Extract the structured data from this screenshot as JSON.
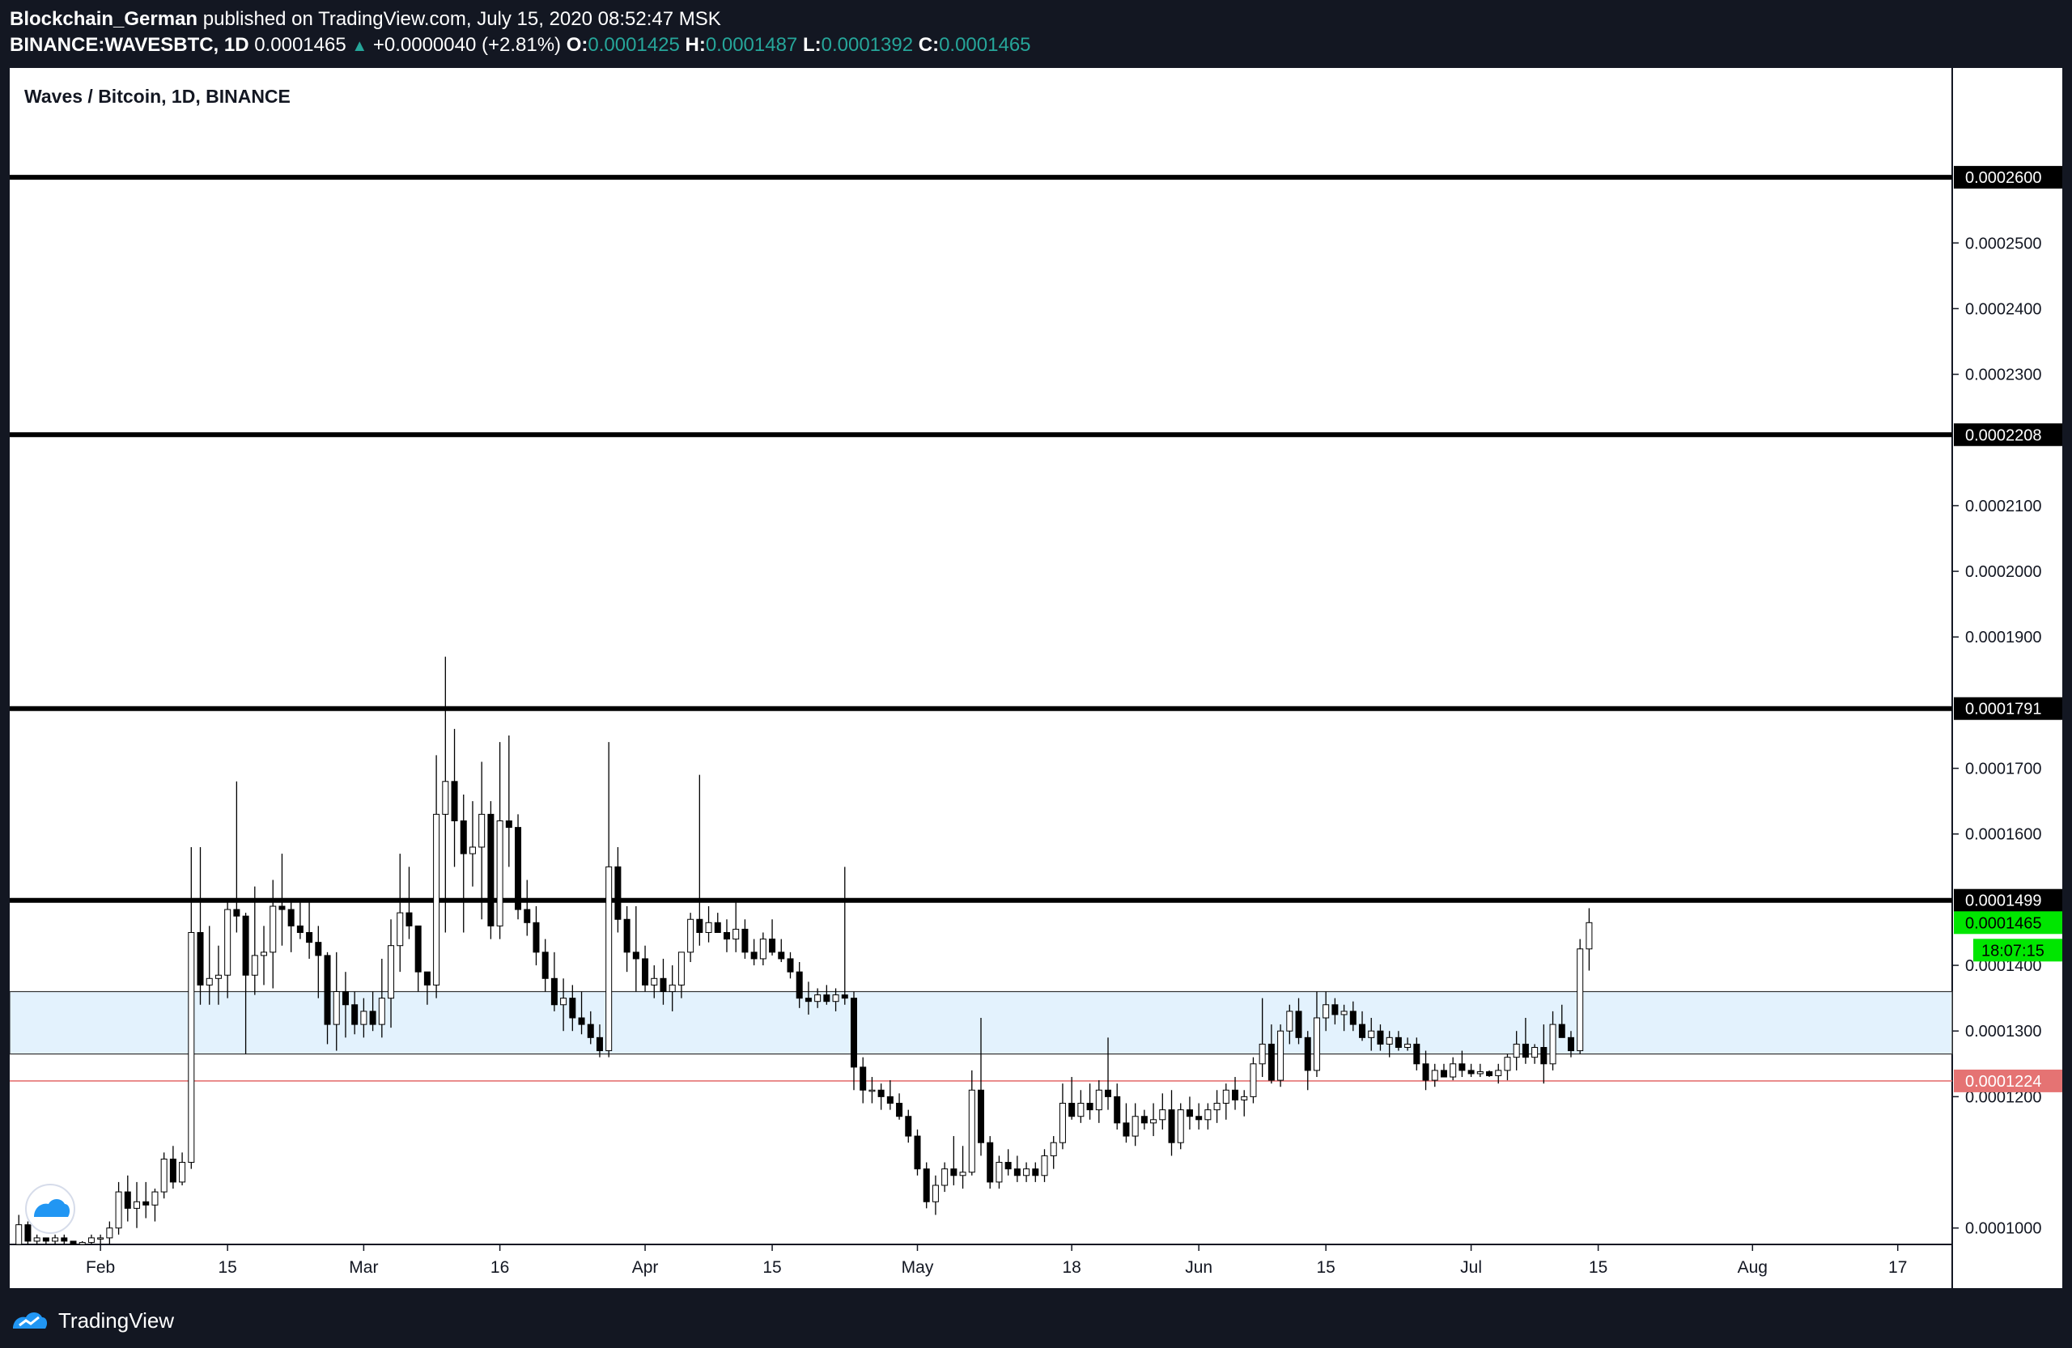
{
  "header": {
    "author": "Blockchain_German",
    "published": "published on TradingView.com, July 15, 2020 08:52:47 MSK",
    "symbol": "BINANCE:WAVESBTC, 1D",
    "last": "0.0001465",
    "change": "+0.0000040 (+2.81%)",
    "o_label": "O:",
    "o_value": "0.0001425",
    "h_label": "H:",
    "h_value": "0.0001487",
    "l_label": "L:",
    "l_value": "0.0001392",
    "c_label": "C:",
    "c_value": "0.0001465"
  },
  "footer": {
    "brand": "TradingView"
  },
  "colors": {
    "background": "#131722",
    "up_candle": "#ffffff",
    "down_candle": "#000000",
    "zone_fill": "#e3f2fd",
    "support_line": "#e57373",
    "price_badge": "#00e600",
    "header_green": "#26a69a"
  },
  "chart_data": {
    "type": "candlestick",
    "title": "Waves / Bitcoin, 1D, BINANCE",
    "ylim": [
      9.75e-05,
      0.0002695
    ],
    "y_ticks": [
      "0.0001000",
      "0.0001200",
      "0.0001300",
      "0.0001400",
      "0.0001600",
      "0.0001700",
      "0.0001900",
      "0.0002000",
      "0.0002100",
      "0.0002300",
      "0.0002400",
      "0.0002500"
    ],
    "x_ticks": [
      {
        "label": "Feb",
        "date": "2020-02-01"
      },
      {
        "label": "15",
        "date": "2020-02-15"
      },
      {
        "label": "Mar",
        "date": "2020-03-01"
      },
      {
        "label": "16",
        "date": "2020-03-16"
      },
      {
        "label": "Apr",
        "date": "2020-04-01"
      },
      {
        "label": "15",
        "date": "2020-04-15"
      },
      {
        "label": "May",
        "date": "2020-05-01"
      },
      {
        "label": "18",
        "date": "2020-05-18"
      },
      {
        "label": "Jun",
        "date": "2020-06-01"
      },
      {
        "label": "15",
        "date": "2020-06-15"
      },
      {
        "label": "Jul",
        "date": "2020-07-01"
      },
      {
        "label": "15",
        "date": "2020-07-15"
      },
      {
        "label": "Aug",
        "date": "2020-08-01"
      },
      {
        "label": "17",
        "date": "2020-08-17"
      }
    ],
    "first_date": "2020-01-23",
    "x_range": [
      "2020-01-22",
      "2020-08-23"
    ],
    "horizontal_levels": [
      {
        "value": 0.00026,
        "label": "0.0002600"
      },
      {
        "value": 0.0002208,
        "label": "0.0002208"
      },
      {
        "value": 0.0001791,
        "label": "0.0001791"
      },
      {
        "value": 0.0001499,
        "label": "0.0001499"
      }
    ],
    "support_level": {
      "value": 0.0001224,
      "label": "0.0001224"
    },
    "zone": [
      0.0001265,
      0.000136
    ],
    "last_price": {
      "value": 0.0001465,
      "label": "0.0001465"
    },
    "countdown": "18:07:15",
    "ohlc": [
      [
        9.75e-05,
        0.000102,
        9.75e-05,
        0.0001005
      ],
      [
        0.0001005,
        0.000101,
        9.75e-05,
        9.8e-05
      ],
      [
        9.8e-05,
        9.9e-05,
        9.75e-05,
        9.85e-05
      ],
      [
        9.85e-05,
        9.85e-05,
        9.75e-05,
        9.8e-05
      ],
      [
        9.8e-05,
        9.9e-05,
        9.75e-05,
        9.85e-05
      ],
      [
        9.85e-05,
        9.9e-05,
        9.75e-05,
        9.8e-05
      ],
      [
        9.8e-05,
        9.8e-05,
        9.75e-05,
        9.75e-05
      ],
      [
        9.75e-05,
        9.8e-05,
        9.75e-05,
        9.78e-05
      ],
      [
        9.78e-05,
        9.9e-05,
        9.75e-05,
        9.85e-05
      ],
      [
        9.85e-05,
        9.9e-05,
        9.75e-05,
        9.85e-05
      ],
      [
        9.85e-05,
        0.000101,
        9.75e-05,
        0.0001
      ],
      [
        0.0001,
        0.000107,
        9.9e-05,
        0.0001055
      ],
      [
        0.0001055,
        0.000108,
        0.000101,
        0.000103
      ],
      [
        0.000103,
        0.000107,
        0.0001,
        0.000104
      ],
      [
        0.000104,
        0.000107,
        0.0001015,
        0.0001035
      ],
      [
        0.0001035,
        0.000106,
        0.000101,
        0.0001055
      ],
      [
        0.0001055,
        0.0001115,
        0.0001045,
        0.0001105
      ],
      [
        0.0001105,
        0.0001125,
        0.000106,
        0.000107
      ],
      [
        0.000107,
        0.0001115,
        0.0001065,
        0.00011
      ],
      [
        0.00011,
        0.000158,
        0.000109,
        0.000145
      ],
      [
        0.000145,
        0.000158,
        0.000134,
        0.000137
      ],
      [
        0.000137,
        0.000146,
        0.000134,
        0.000138
      ],
      [
        0.000138,
        0.000143,
        0.000134,
        0.0001385
      ],
      [
        0.0001385,
        0.00015,
        0.000135,
        0.0001485
      ],
      [
        0.0001485,
        0.000168,
        0.000145,
        0.0001475
      ],
      [
        0.0001475,
        0.000148,
        0.0001265,
        0.0001385
      ],
      [
        0.0001385,
        0.000152,
        0.0001355,
        0.0001415
      ],
      [
        0.0001415,
        0.000146,
        0.000137,
        0.000142
      ],
      [
        0.000142,
        0.000153,
        0.0001365,
        0.000149
      ],
      [
        0.000149,
        0.000157,
        0.000143,
        0.0001485
      ],
      [
        0.0001485,
        0.00015,
        0.000142,
        0.000146
      ],
      [
        0.000146,
        0.00015,
        0.000144,
        0.000145
      ],
      [
        0.000145,
        0.00015,
        0.000141,
        0.0001435
      ],
      [
        0.0001435,
        0.000146,
        0.000135,
        0.0001415
      ],
      [
        0.0001415,
        0.000142,
        0.000128,
        0.000131
      ],
      [
        0.000131,
        0.000142,
        0.000127,
        0.000136
      ],
      [
        0.000136,
        0.000139,
        0.000129,
        0.000134
      ],
      [
        0.000134,
        0.000136,
        0.0001295,
        0.000131
      ],
      [
        0.000131,
        0.000135,
        0.000129,
        0.000133
      ],
      [
        0.000133,
        0.000136,
        0.00013,
        0.000131
      ],
      [
        0.000131,
        0.000141,
        0.000129,
        0.000135
      ],
      [
        0.000135,
        0.000147,
        0.0001305,
        0.000143
      ],
      [
        0.000143,
        0.000157,
        0.000139,
        0.000148
      ],
      [
        0.000148,
        0.000155,
        0.000144,
        0.000146
      ],
      [
        0.000146,
        0.000146,
        0.000136,
        0.000139
      ],
      [
        0.000139,
        0.000139,
        0.000134,
        0.000137
      ],
      [
        0.000137,
        0.000172,
        0.000135,
        0.000163
      ],
      [
        0.000163,
        0.000187,
        0.000145,
        0.000168
      ],
      [
        0.000168,
        0.000176,
        0.000155,
        0.000162
      ],
      [
        0.000162,
        0.000166,
        0.000145,
        0.000157
      ],
      [
        0.000157,
        0.000165,
        0.000152,
        0.000158
      ],
      [
        0.000158,
        0.000171,
        0.000147,
        0.000163
      ],
      [
        0.000163,
        0.000165,
        0.000144,
        0.000146
      ],
      [
        0.000146,
        0.000174,
        0.000144,
        0.000162
      ],
      [
        0.000162,
        0.000175,
        0.000155,
        0.000161
      ],
      [
        0.000161,
        0.000163,
        0.000147,
        0.0001485
      ],
      [
        0.0001485,
        0.000153,
        0.0001445,
        0.0001465
      ],
      [
        0.0001465,
        0.000149,
        0.00014,
        0.000142
      ],
      [
        0.000142,
        0.000144,
        0.000136,
        0.000138
      ],
      [
        0.000138,
        0.000142,
        0.000133,
        0.000134
      ],
      [
        0.000134,
        0.000138,
        0.00013,
        0.000135
      ],
      [
        0.000135,
        0.000137,
        0.00013,
        0.000132
      ],
      [
        0.000132,
        0.000136,
        0.0001295,
        0.000131
      ],
      [
        0.000131,
        0.000133,
        0.000128,
        0.000129
      ],
      [
        0.000129,
        0.000131,
        0.000126,
        0.000127
      ],
      [
        0.000127,
        0.000174,
        0.000126,
        0.000155
      ],
      [
        0.000155,
        0.000158,
        0.000145,
        0.000147
      ],
      [
        0.000147,
        0.000149,
        0.000139,
        0.000142
      ],
      [
        0.000142,
        0.000149,
        0.000136,
        0.000141
      ],
      [
        0.000141,
        0.000143,
        0.000136,
        0.000137
      ],
      [
        0.000137,
        0.00014,
        0.000135,
        0.000138
      ],
      [
        0.000138,
        0.000141,
        0.000134,
        0.000136
      ],
      [
        0.000136,
        0.00014,
        0.000133,
        0.000137
      ],
      [
        0.000137,
        0.000141,
        0.000135,
        0.000142
      ],
      [
        0.000142,
        0.000148,
        0.0001405,
        0.000147
      ],
      [
        0.000147,
        0.000169,
        0.000143,
        0.000145
      ],
      [
        0.000145,
        0.000149,
        0.0001435,
        0.0001465
      ],
      [
        0.0001465,
        0.000148,
        0.000145,
        0.000145
      ],
      [
        0.000145,
        0.000147,
        0.000142,
        0.000144
      ],
      [
        0.000144,
        0.00015,
        0.000142,
        0.0001455
      ],
      [
        0.0001455,
        0.000147,
        0.000141,
        0.000142
      ],
      [
        0.000142,
        0.000144,
        0.00014,
        0.000141
      ],
      [
        0.000141,
        0.000145,
        0.00014,
        0.000144
      ],
      [
        0.000144,
        0.000147,
        0.0001415,
        0.000142
      ],
      [
        0.000142,
        0.000144,
        0.0001405,
        0.000141
      ],
      [
        0.000141,
        0.000142,
        0.000138,
        0.000139
      ],
      [
        0.000139,
        0.0001405,
        0.0001335,
        0.000135
      ],
      [
        0.000135,
        0.0001375,
        0.0001325,
        0.0001345
      ],
      [
        0.0001345,
        0.0001365,
        0.0001335,
        0.0001355
      ],
      [
        0.0001355,
        0.000137,
        0.000134,
        0.0001345
      ],
      [
        0.0001345,
        0.0001365,
        0.000133,
        0.0001355
      ],
      [
        0.0001355,
        0.000155,
        0.000134,
        0.000135
      ],
      [
        0.000135,
        0.000136,
        0.000121,
        0.0001245
      ],
      [
        0.0001245,
        0.000126,
        0.000119,
        0.000121
      ],
      [
        0.000121,
        0.000123,
        0.000119,
        0.000121
      ],
      [
        0.000121,
        0.000122,
        0.000118,
        0.00012
      ],
      [
        0.00012,
        0.0001225,
        0.000118,
        0.000119
      ],
      [
        0.000119,
        0.0001205,
        0.0001165,
        0.000117
      ],
      [
        0.000117,
        0.000118,
        0.000113,
        0.000114
      ],
      [
        0.000114,
        0.000115,
        0.000108,
        0.000109
      ],
      [
        0.000109,
        0.00011,
        0.000103,
        0.000104
      ],
      [
        0.000104,
        0.000108,
        0.000102,
        0.0001065
      ],
      [
        0.0001065,
        0.00011,
        0.0001055,
        0.000109
      ],
      [
        0.000109,
        0.000114,
        0.0001065,
        0.000108
      ],
      [
        0.000108,
        0.0001125,
        0.000106,
        0.0001085
      ],
      [
        0.0001085,
        0.000124,
        0.000108,
        0.000121
      ],
      [
        0.000121,
        0.000132,
        0.000111,
        0.000113
      ],
      [
        0.000113,
        0.000114,
        0.000106,
        0.000107
      ],
      [
        0.000107,
        0.000111,
        0.000106,
        0.00011
      ],
      [
        0.00011,
        0.000112,
        0.000108,
        0.000109
      ],
      [
        0.000109,
        0.000111,
        0.000107,
        0.000108
      ],
      [
        0.000108,
        0.00011,
        0.000107,
        0.000109
      ],
      [
        0.000109,
        0.00011,
        0.000107,
        0.000108
      ],
      [
        0.000108,
        0.000112,
        0.000107,
        0.000111
      ],
      [
        0.000111,
        0.000114,
        0.000109,
        0.000113
      ],
      [
        0.000113,
        0.000122,
        0.000112,
        0.000119
      ],
      [
        0.000119,
        0.000123,
        0.0001165,
        0.000117
      ],
      [
        0.000117,
        0.000121,
        0.000116,
        0.000119
      ],
      [
        0.000119,
        0.000122,
        0.0001165,
        0.000118
      ],
      [
        0.000118,
        0.0001225,
        0.000116,
        0.000121
      ],
      [
        0.000121,
        0.000129,
        0.000118,
        0.00012
      ],
      [
        0.00012,
        0.000122,
        0.000115,
        0.000116
      ],
      [
        0.000116,
        0.000119,
        0.000113,
        0.000114
      ],
      [
        0.000114,
        0.000119,
        0.0001125,
        0.000117
      ],
      [
        0.000117,
        0.000118,
        0.000115,
        0.000116
      ],
      [
        0.000116,
        0.000119,
        0.000114,
        0.0001165
      ],
      [
        0.0001165,
        0.0001205,
        0.000115,
        0.000118
      ],
      [
        0.000118,
        0.000121,
        0.000111,
        0.000113
      ],
      [
        0.000113,
        0.000119,
        0.000112,
        0.000118
      ],
      [
        0.000118,
        0.00012,
        0.000115,
        0.000117
      ],
      [
        0.000117,
        0.000119,
        0.000115,
        0.0001165
      ],
      [
        0.0001165,
        0.000119,
        0.000115,
        0.000118
      ],
      [
        0.000118,
        0.000121,
        0.000116,
        0.000119
      ],
      [
        0.000119,
        0.000122,
        0.0001165,
        0.000121
      ],
      [
        0.000121,
        0.000123,
        0.000118,
        0.0001195
      ],
      [
        0.0001195,
        0.000121,
        0.000117,
        0.00012
      ],
      [
        0.00012,
        0.000126,
        0.000119,
        0.000125
      ],
      [
        0.000125,
        0.000135,
        0.000123,
        0.000128
      ],
      [
        0.000128,
        0.000131,
        0.000122,
        0.0001225
      ],
      [
        0.0001225,
        0.000131,
        0.0001215,
        0.00013
      ],
      [
        0.00013,
        0.000134,
        0.000128,
        0.000133
      ],
      [
        0.000133,
        0.000135,
        0.000128,
        0.000129
      ],
      [
        0.000129,
        0.00013,
        0.000121,
        0.000124
      ],
      [
        0.000124,
        0.000136,
        0.000123,
        0.000132
      ],
      [
        0.000132,
        0.000136,
        0.00013,
        0.000134
      ],
      [
        0.000134,
        0.000135,
        0.000131,
        0.0001325
      ],
      [
        0.0001325,
        0.000134,
        0.00013,
        0.000133
      ],
      [
        0.000133,
        0.0001345,
        0.00013,
        0.000131
      ],
      [
        0.000131,
        0.000133,
        0.0001285,
        0.000129
      ],
      [
        0.000129,
        0.000132,
        0.000127,
        0.00013
      ],
      [
        0.00013,
        0.000131,
        0.000127,
        0.000128
      ],
      [
        0.000128,
        0.00013,
        0.000126,
        0.000129
      ],
      [
        0.000129,
        0.00013,
        0.000127,
        0.0001275
      ],
      [
        0.0001275,
        0.000129,
        0.000127,
        0.000128
      ],
      [
        0.000128,
        0.000129,
        0.000124,
        0.000125
      ],
      [
        0.000125,
        0.000127,
        0.000121,
        0.0001225
      ],
      [
        0.0001225,
        0.000125,
        0.0001215,
        0.000124
      ],
      [
        0.000124,
        0.000125,
        0.000123,
        0.000123
      ],
      [
        0.000123,
        0.000126,
        0.0001225,
        0.000125
      ],
      [
        0.000125,
        0.000127,
        0.000123,
        0.000124
      ],
      [
        0.000124,
        0.000125,
        0.000123,
        0.0001235
      ],
      [
        0.0001235,
        0.000125,
        0.000123,
        0.0001238
      ],
      [
        0.0001238,
        0.000124,
        0.000123,
        0.0001232
      ],
      [
        0.0001232,
        0.000125,
        0.000122,
        0.000124
      ],
      [
        0.000124,
        0.0001265,
        0.0001225,
        0.000126
      ],
      [
        0.000126,
        0.00013,
        0.000124,
        0.000128
      ],
      [
        0.000128,
        0.000132,
        0.000125,
        0.000126
      ],
      [
        0.000126,
        0.000128,
        0.000125,
        0.0001275
      ],
      [
        0.0001275,
        0.000131,
        0.000122,
        0.000125
      ],
      [
        0.000125,
        0.000133,
        0.000124,
        0.000131
      ],
      [
        0.000131,
        0.000134,
        0.000129,
        0.000129
      ],
      [
        0.000129,
        0.00013,
        0.000126,
        0.000127
      ],
      [
        0.000127,
        0.000144,
        0.0001265,
        0.0001425
      ],
      [
        0.0001425,
        0.0001487,
        0.0001392,
        0.0001465
      ]
    ]
  }
}
